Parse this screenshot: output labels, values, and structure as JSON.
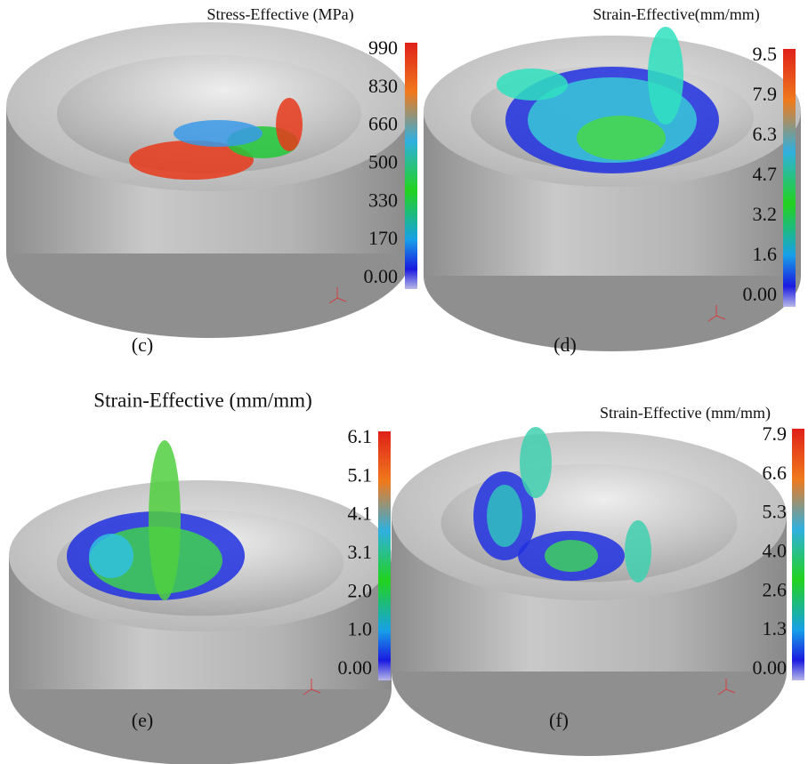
{
  "panels": [
    {
      "caption": "(c)",
      "title": "Stress-Effective (MPa)",
      "scale_labels": [
        "990",
        "830",
        "660",
        "500",
        "330",
        "170",
        "0.00"
      ]
    },
    {
      "caption": "(d)",
      "title": "Strain-Effective(mm/mm)",
      "scale_labels": [
        "9.5",
        "7.9",
        "6.3",
        "4.7",
        "3.2",
        "1.6",
        "0.00"
      ]
    },
    {
      "caption": "(e)",
      "title": "Strain-Effective (mm/mm)",
      "scale_labels": [
        "6.1",
        "5.1",
        "4.1",
        "3.1",
        "2.0",
        "1.0",
        "0.00"
      ]
    },
    {
      "caption": "(f)",
      "title": "Strain-Effective (mm/mm)",
      "scale_labels": [
        "7.9",
        "6.6",
        "5.3",
        "4.0",
        "2.6",
        "1.3",
        "0.00"
      ]
    }
  ]
}
